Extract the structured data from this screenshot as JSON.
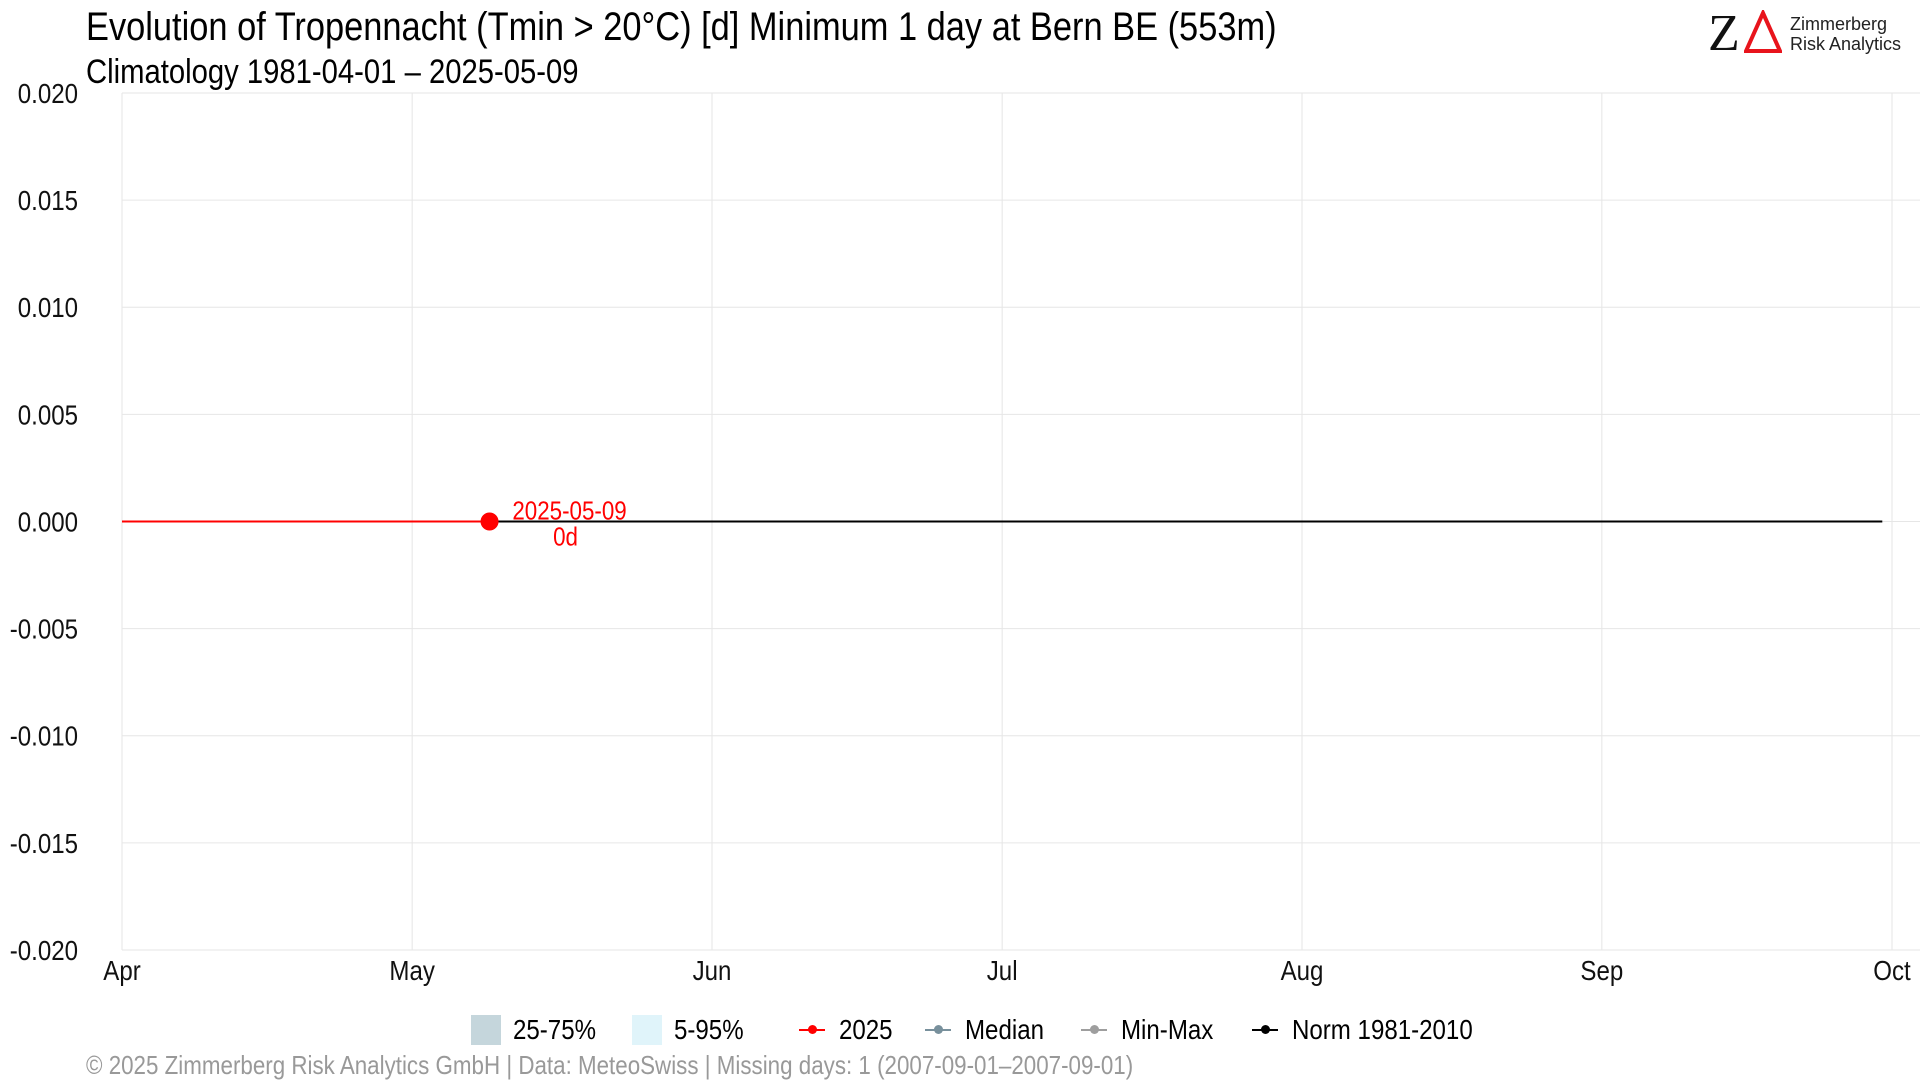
{
  "header": {
    "title": "Evolution of Tropennacht (Tmin > 20°C) [d] Minimum 1 day at Bern  BE (553m)",
    "subtitle": "Climatology 1981-04-01 – 2025-05-09"
  },
  "logo": {
    "mark_letter": "Z",
    "line1": "Zimmerberg",
    "line2": "Risk Analytics",
    "z_color": "#111111",
    "delta_color": "#e8141c"
  },
  "colors": {
    "current_year": "#ff0000",
    "norm": "#000000",
    "median": "#78909c",
    "minmax": "#9e9e9e",
    "band_25_75": "#c5d6dc",
    "band_5_95": "#e0f4fa",
    "grid": "#e6e6e6",
    "footer_text": "#999999"
  },
  "chart_data": {
    "type": "line",
    "title": "Evolution of Tropennacht (Tmin > 20°C) [d] Minimum 1 day at Bern  BE (553m)",
    "subtitle": "Climatology 1981-04-01 – 2025-05-09",
    "xlabel": "",
    "ylabel": "",
    "x_domain": [
      "2025-04-01",
      "2025-10-01"
    ],
    "x_ticks": [
      {
        "date": "2025-04-01",
        "label": "Apr"
      },
      {
        "date": "2025-05-01",
        "label": "May"
      },
      {
        "date": "2025-06-01",
        "label": "Jun"
      },
      {
        "date": "2025-07-01",
        "label": "Jul"
      },
      {
        "date": "2025-08-01",
        "label": "Aug"
      },
      {
        "date": "2025-09-01",
        "label": "Sep"
      },
      {
        "date": "2025-10-01",
        "label": "Oct"
      }
    ],
    "ylim": [
      -0.02,
      0.02
    ],
    "y_ticks": [
      "-0.020",
      "-0.015",
      "-0.010",
      "-0.005",
      "0.000",
      "0.005",
      "0.010",
      "0.015",
      "0.020"
    ],
    "grid": true,
    "legend_position": "bottom",
    "series": [
      {
        "name": "2025",
        "key": "current_year",
        "x": [
          "2025-04-01",
          "2025-05-09"
        ],
        "y": [
          0,
          0
        ]
      },
      {
        "name": "Norm 1981-2010",
        "key": "norm",
        "x": [
          "2025-04-01",
          "2025-09-30"
        ],
        "y": [
          0,
          0
        ]
      }
    ],
    "annotation": {
      "x": "2025-05-09",
      "y": 0,
      "label_date": "2025-05-09",
      "label_value": "0d"
    },
    "legend": [
      {
        "label": "25-75%",
        "kind": "fill",
        "color": "#c5d6dc"
      },
      {
        "label": "5-95%",
        "kind": "fill",
        "color": "#e0f4fa"
      },
      {
        "label": "2025",
        "kind": "line",
        "color": "#ff0000"
      },
      {
        "label": "Median",
        "kind": "line",
        "color": "#78909c"
      },
      {
        "label": "Min-Max",
        "kind": "line",
        "color": "#9e9e9e"
      },
      {
        "label": "Norm 1981-2010",
        "kind": "line",
        "color": "#000000"
      }
    ]
  },
  "footer": {
    "text": "©  2025 Zimmerberg Risk Analytics GmbH | Data: MeteoSwiss | Missing days: 1 (2007-09-01–2007-09-01)"
  }
}
